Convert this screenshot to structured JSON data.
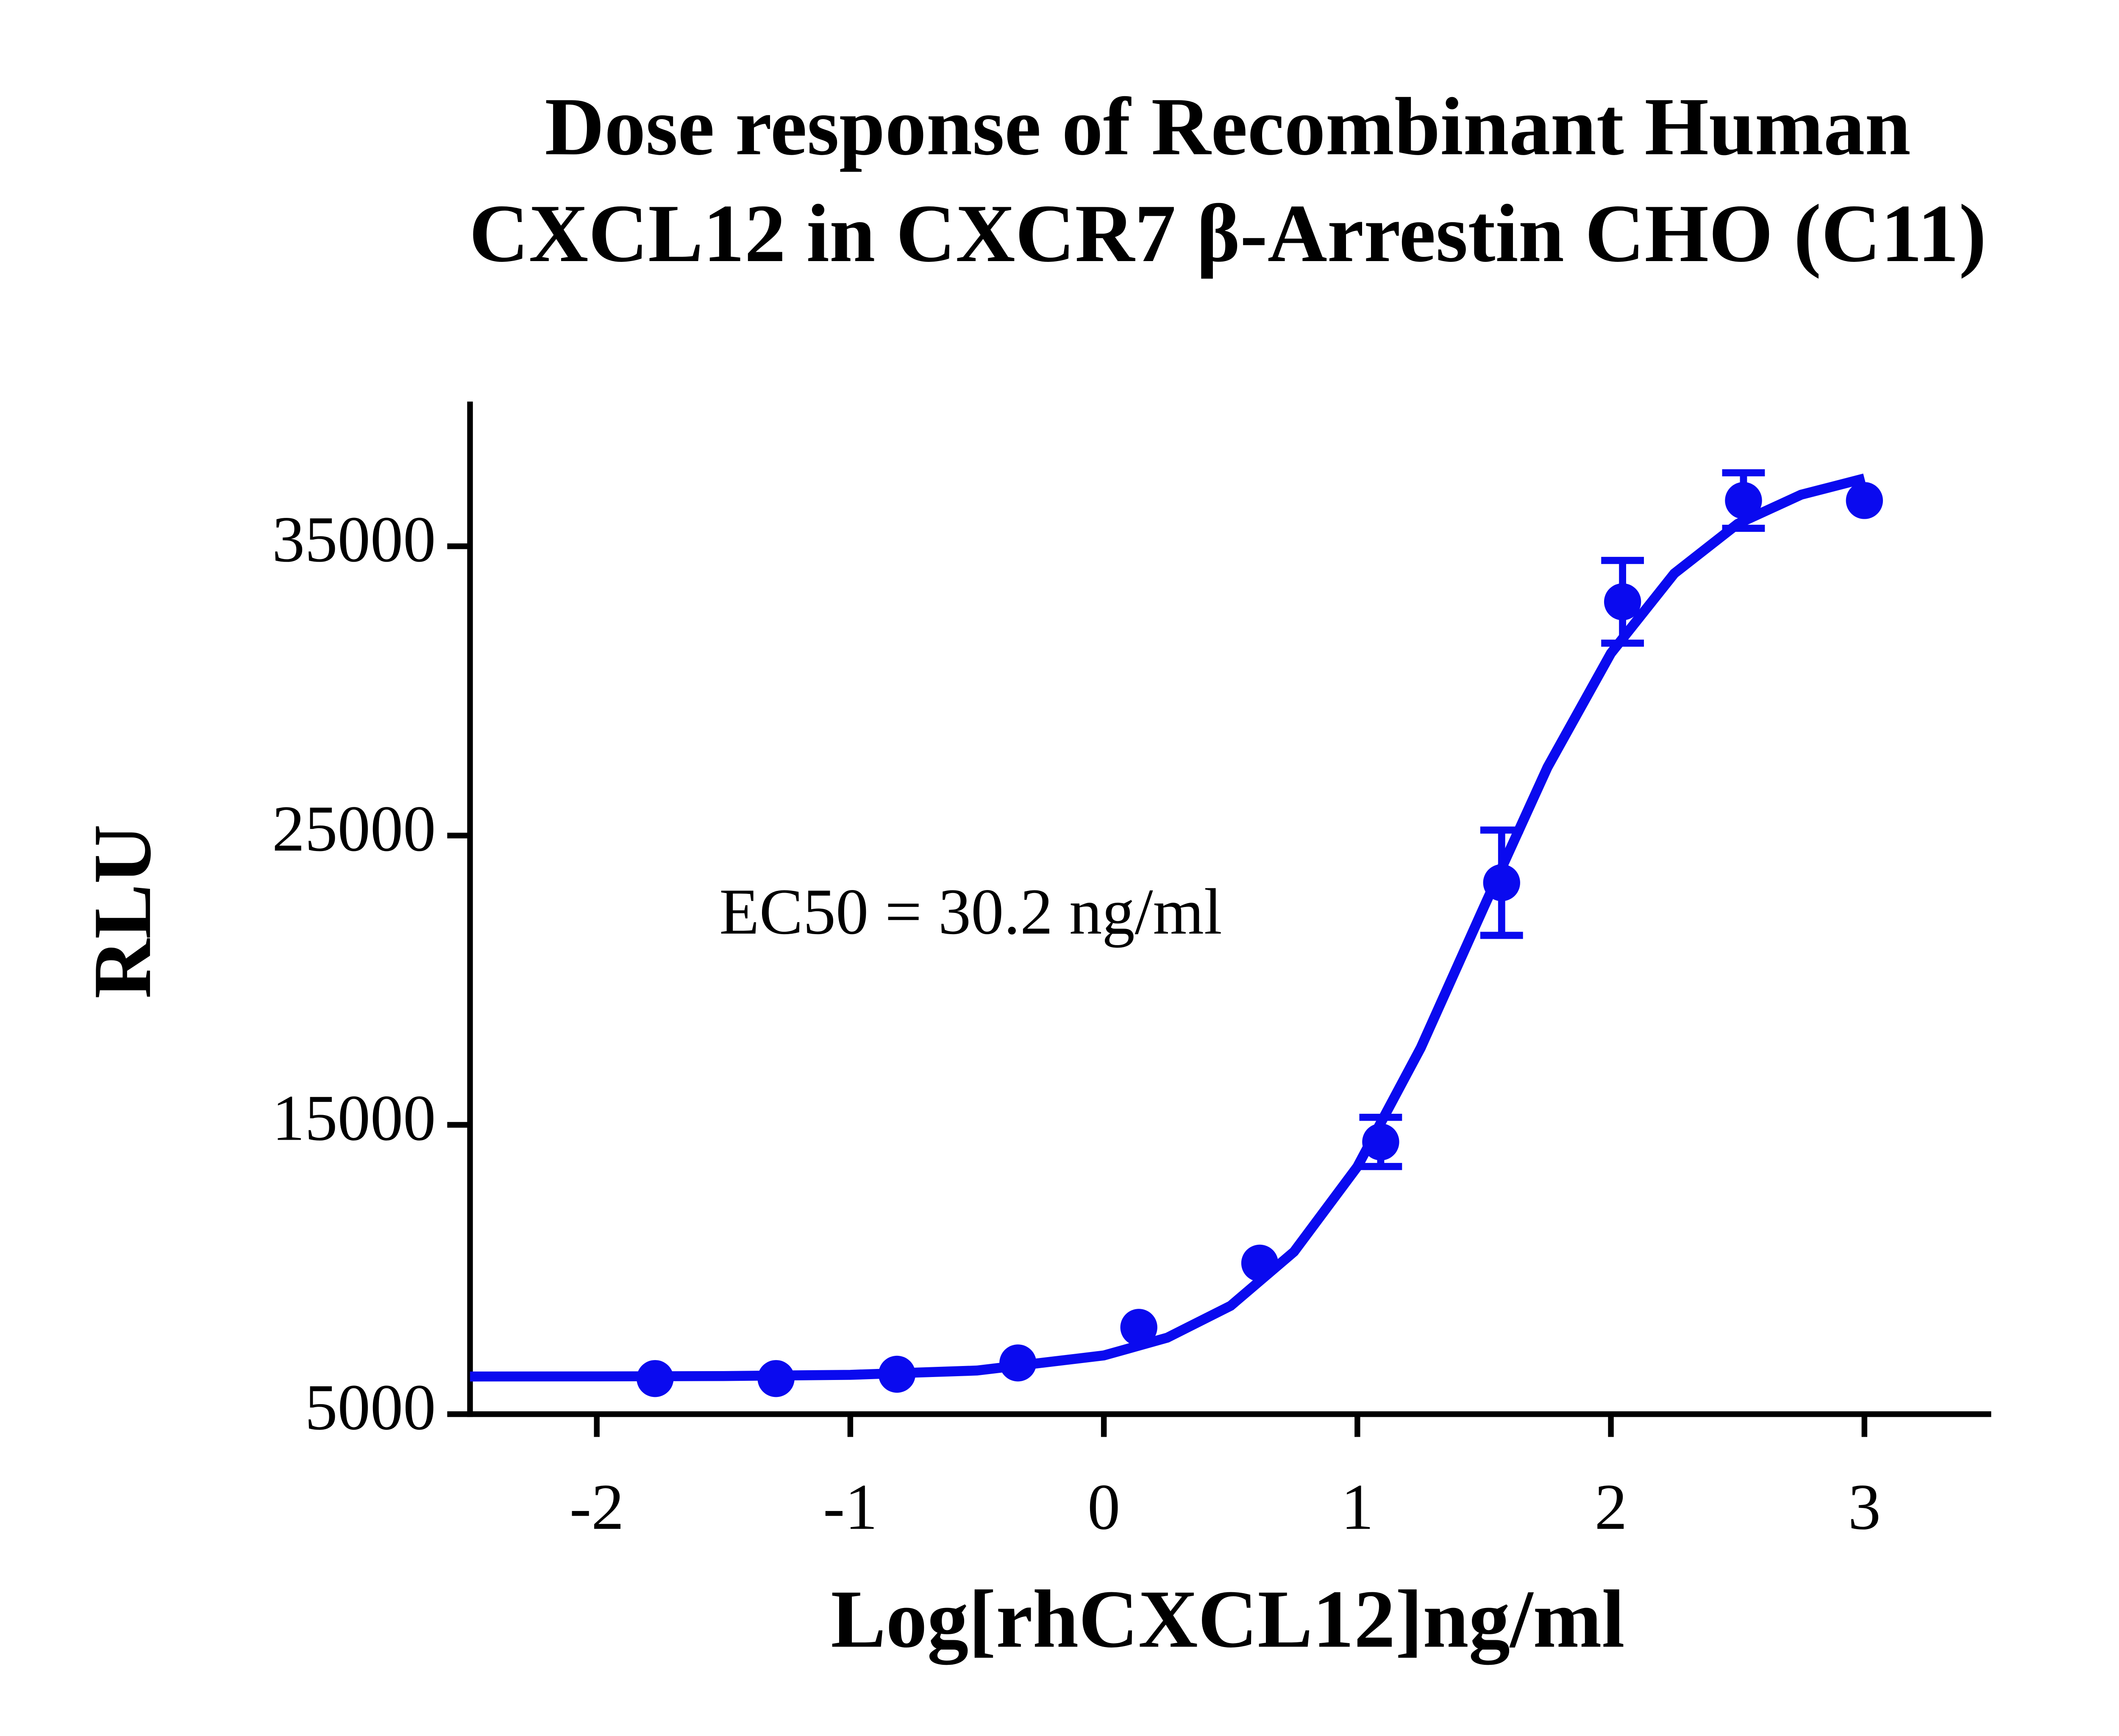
{
  "chart_data": {
    "type": "scatter",
    "title": [
      "Dose response of Recombinant Human",
      "CXCL12 in CXCR7 β-Arrestin CHO (C11)"
    ],
    "x_label": "Log[rhCXCL12]ng/ml",
    "y_label": "RLU",
    "annotation": "EC50 = 30.2 ng/ml",
    "xlim": [
      -2.5,
      3.5
    ],
    "xticks": [
      -2,
      -1,
      0,
      1,
      2,
      3
    ],
    "ylim": [
      5000,
      40000
    ],
    "yticks": [
      5000,
      15000,
      25000,
      35000
    ],
    "color": "#0a0aef",
    "x": [
      -1.77,
      -1.293,
      -0.816,
      -0.339,
      0.138,
      0.615,
      1.092,
      1.569,
      2.046,
      2.523,
      3.0
    ],
    "values": [
      6230,
      6230,
      6380,
      6770,
      8000,
      10220,
      14410,
      23370,
      33080,
      36580,
      36580
    ],
    "errors": [
      null,
      null,
      null,
      null,
      null,
      null,
      850,
      1820,
      1430,
      960,
      null
    ],
    "fit": {
      "x": [
        -2.5,
        -2,
        -1.5,
        -1,
        -0.5,
        0,
        0.25,
        0.5,
        0.75,
        1,
        1.25,
        1.5,
        1.75,
        2,
        2.25,
        2.5,
        2.75,
        3
      ],
      "values": [
        6301,
        6305,
        6317,
        6359,
        6508,
        7029,
        7643,
        8744,
        10613,
        13554,
        17662,
        22548,
        27363,
        31300,
        34058,
        35775,
        36781,
        37345
      ]
    }
  }
}
